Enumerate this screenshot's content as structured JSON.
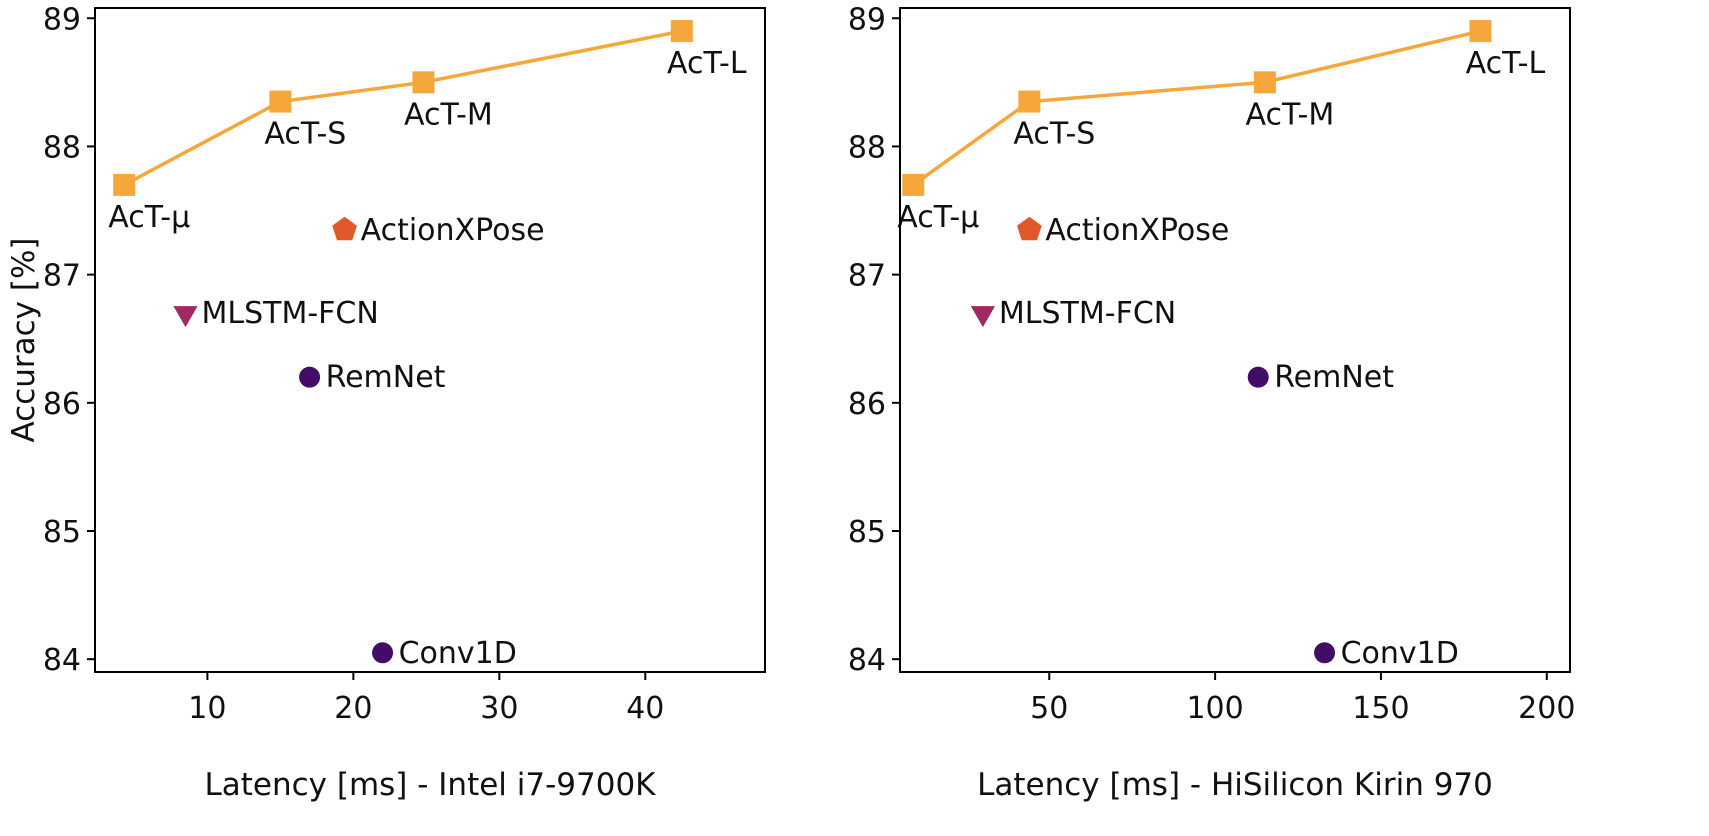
{
  "figure": {
    "background": "#ffffff",
    "axis_color": "#000000",
    "colors": {
      "act_series": "#f5a73b",
      "actionxpose": "#e1582a",
      "mlstm_fcn": "#9f2963",
      "dark_points": "#430d66"
    }
  },
  "chart_data": [
    {
      "type": "scatter",
      "name": "latency-accuracy-cpu",
      "xlabel": "Latency [ms] - Intel i7-9700K",
      "ylabel": "Accuracy [%]",
      "xlim": [
        2.3,
        48.2
      ],
      "ylim": [
        83.9,
        89.08
      ],
      "xticks": [
        10,
        20,
        30,
        40
      ],
      "yticks": [
        84,
        85,
        86,
        87,
        88,
        89
      ],
      "grid": false,
      "legend": "none",
      "series": [
        {
          "name": "AcT",
          "marker": "square",
          "color": "#f5a73b",
          "line": true,
          "points": [
            {
              "label": "AcT-μ",
              "x": 4.3,
              "y": 87.7,
              "label_pos": "below"
            },
            {
              "label": "AcT-S",
              "x": 15,
              "y": 88.35,
              "label_pos": "below"
            },
            {
              "label": "AcT-M",
              "x": 24.8,
              "y": 88.5,
              "label_pos": "below"
            },
            {
              "label": "AcT-L",
              "x": 42.5,
              "y": 88.9,
              "label_pos": "below"
            }
          ]
        },
        {
          "name": "baselines",
          "marker": "circle",
          "color": "#430d66",
          "line": false,
          "points": [
            {
              "label": "ActionXPose",
              "x": 19.4,
              "y": 87.35,
              "marker": "pentagon",
              "color": "#e1582a",
              "label_pos": "right"
            },
            {
              "label": "MLSTM-FCN",
              "x": 8.5,
              "y": 86.7,
              "marker": "triangle-down",
              "color": "#9f2963",
              "label_pos": "right"
            },
            {
              "label": "RemNet",
              "x": 17,
              "y": 86.2,
              "label_pos": "right"
            },
            {
              "label": "Conv1D",
              "x": 22,
              "y": 84.05,
              "label_pos": "right"
            }
          ]
        }
      ]
    },
    {
      "type": "scatter",
      "name": "latency-accuracy-kirin",
      "xlabel": "Latency [ms] - HiSilicon Kirin 970",
      "ylabel": "Accuracy [%]",
      "xlim": [
        5,
        207
      ],
      "ylim": [
        83.9,
        89.08
      ],
      "xticks": [
        50,
        100,
        150,
        200
      ],
      "yticks": [
        84,
        85,
        86,
        87,
        88,
        89
      ],
      "grid": false,
      "legend": "none",
      "series": [
        {
          "name": "AcT",
          "marker": "square",
          "color": "#f5a73b",
          "line": true,
          "points": [
            {
              "label": "AcT-μ",
              "x": 9,
              "y": 87.7,
              "label_pos": "below"
            },
            {
              "label": "AcT-S",
              "x": 44,
              "y": 88.35,
              "label_pos": "below"
            },
            {
              "label": "AcT-M",
              "x": 115,
              "y": 88.5,
              "label_pos": "below"
            },
            {
              "label": "AcT-L",
              "x": 180,
              "y": 88.9,
              "label_pos": "below"
            }
          ]
        },
        {
          "name": "baselines",
          "marker": "circle",
          "color": "#430d66",
          "line": false,
          "points": [
            {
              "label": "ActionXPose",
              "x": 44,
              "y": 87.35,
              "marker": "pentagon",
              "color": "#e1582a",
              "label_pos": "right"
            },
            {
              "label": "MLSTM-FCN",
              "x": 30,
              "y": 86.7,
              "marker": "triangle-down",
              "color": "#9f2963",
              "label_pos": "right"
            },
            {
              "label": "RemNet",
              "x": 113,
              "y": 86.2,
              "label_pos": "right"
            },
            {
              "label": "Conv1D",
              "x": 133,
              "y": 84.05,
              "label_pos": "right"
            }
          ]
        }
      ]
    }
  ]
}
